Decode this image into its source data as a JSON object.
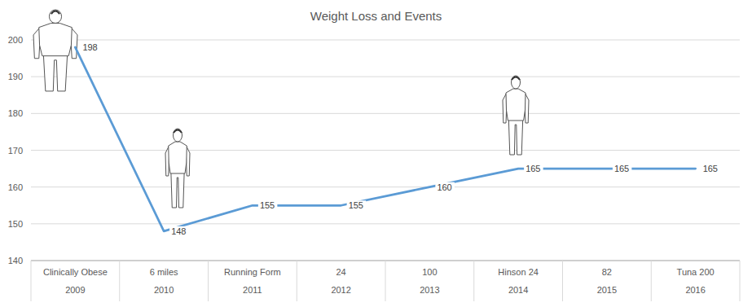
{
  "chart_data": {
    "type": "line",
    "title": "Weight Loss and Events",
    "categories": [
      "Clinically Obese",
      "6 miles",
      "Running Form",
      "24",
      "100",
      "Hinson 24",
      "82",
      "Tuna 200"
    ],
    "years": [
      "2009",
      "2010",
      "2011",
      "2012",
      "2013",
      "2014",
      "2015",
      "2016"
    ],
    "values": [
      198,
      148,
      155,
      155,
      160,
      165,
      165,
      165
    ],
    "color": "#5b9bd5",
    "ylim": [
      140,
      200
    ],
    "yticks": [
      140,
      150,
      160,
      170,
      180,
      190,
      200
    ],
    "grid": true,
    "data_labels": true
  }
}
